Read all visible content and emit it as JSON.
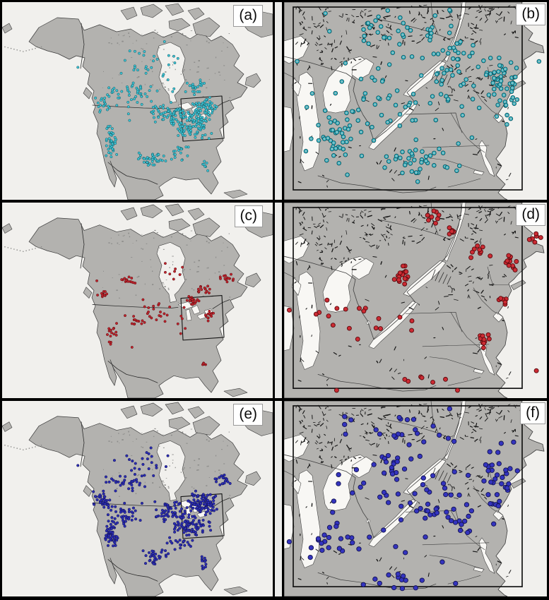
{
  "figure": {
    "type": "six-panel-station-map-figure",
    "columns": [
      "north-america-overview",
      "great-lakes-region-zoom"
    ],
    "border_color": "#000000",
    "ocean_color": "#f1f0ed",
    "land_color": "#b3b2af",
    "lake_color": "#f8f7f4",
    "coast_color": "#3b3b3b",
    "gap_color": "#ececea",
    "inset_box_color": "#141414"
  },
  "panels": [
    {
      "id": "a",
      "label": "(a)",
      "map": "north-america",
      "row": 0,
      "col": 0,
      "seed": 101,
      "marker": {
        "shape": "circle",
        "fill": "#3fc4d4",
        "edge": "#0b535e",
        "r": 1.7,
        "open": false
      },
      "clusters": [
        [
          70,
          62,
          9,
          8,
          110
        ],
        [
          75,
          53,
          5,
          5,
          50
        ],
        [
          62,
          56,
          8,
          6,
          55
        ],
        [
          55,
          80,
          7,
          5,
          40
        ],
        [
          40.5,
          70,
          2.5,
          9,
          40
        ],
        [
          37,
          51,
          3.5,
          5,
          18
        ],
        [
          46,
          45,
          10,
          6,
          30
        ],
        [
          52,
          31,
          14,
          8,
          25
        ],
        [
          72,
          43,
          6,
          4,
          22
        ],
        [
          56,
          52,
          18,
          13,
          30
        ],
        [
          66,
          76,
          6,
          5,
          18
        ],
        [
          75,
          82,
          1.5,
          4,
          7
        ]
      ],
      "singles": [
        [
          28,
          33
        ],
        [
          60,
          20
        ],
        [
          44,
          36
        ]
      ]
    },
    {
      "id": "b",
      "label": "(b)",
      "map": "great-lakes",
      "row": 0,
      "col": 1,
      "seed": 202,
      "marker": {
        "shape": "circle",
        "fill": "#3fc4d4",
        "edge": "#0b535e",
        "r": 2.8,
        "open": true
      },
      "clusters": [
        [
          45,
          52,
          38,
          36,
          85
        ],
        [
          83,
          42,
          7,
          22,
          55
        ],
        [
          42,
          14,
          30,
          11,
          35
        ],
        [
          20,
          68,
          13,
          16,
          35
        ],
        [
          50,
          82,
          20,
          10,
          35
        ],
        [
          65,
          30,
          12,
          12,
          25
        ]
      ],
      "singles": [
        [
          63,
          4
        ],
        [
          90,
          6
        ],
        [
          97,
          30
        ],
        [
          5,
          30
        ]
      ]
    },
    {
      "id": "c",
      "label": "(c)",
      "map": "north-america",
      "row": 1,
      "col": 0,
      "seed": 303,
      "marker": {
        "shape": "circle",
        "fill": "#c1242d",
        "edge": "#58090d",
        "r": 1.7,
        "open": false
      },
      "clusters": [
        [
          70.5,
          50,
          2.5,
          2.5,
          22
        ],
        [
          74,
          44,
          3.5,
          2.5,
          14
        ],
        [
          83,
          39,
          3,
          3.5,
          14
        ],
        [
          76.5,
          57,
          2,
          4,
          13
        ],
        [
          40.5,
          68,
          2.2,
          7,
          16
        ],
        [
          37,
          47,
          2,
          2.5,
          11
        ],
        [
          46.5,
          40,
          4,
          2.5,
          13
        ],
        [
          50,
          61,
          4,
          3,
          11
        ],
        [
          58,
          56,
          14,
          11,
          26
        ],
        [
          74.5,
          82,
          1.2,
          3.5,
          5
        ],
        [
          63,
          35,
          8,
          5,
          8
        ]
      ],
      "singles": [
        [
          35,
          40
        ],
        [
          48,
          74
        ],
        [
          66,
          67
        ]
      ]
    },
    {
      "id": "d",
      "label": "(d)",
      "map": "great-lakes",
      "row": 1,
      "col": 1,
      "seed": 404,
      "marker": {
        "shape": "circle",
        "fill": "#cc2b33",
        "edge": "#58090d",
        "r": 3.0,
        "open": false
      },
      "clusters": [
        [
          45,
          37,
          4,
          7,
          18
        ],
        [
          57,
          7,
          4,
          4,
          9
        ],
        [
          63,
          14,
          3,
          4,
          6
        ],
        [
          74,
          25,
          6,
          6,
          9
        ],
        [
          86,
          31,
          3,
          5,
          11
        ],
        [
          83,
          49,
          2.5,
          3.5,
          6
        ],
        [
          76,
          71,
          3,
          5,
          10
        ],
        [
          32,
          64,
          18,
          14,
          13
        ],
        [
          14,
          56,
          7,
          9,
          5
        ],
        [
          50,
          90,
          15,
          5,
          6
        ],
        [
          95,
          20,
          3,
          6,
          6
        ]
      ],
      "singles": [
        [
          2,
          55
        ],
        [
          20,
          96
        ],
        [
          66,
          96
        ],
        [
          96,
          86
        ]
      ]
    },
    {
      "id": "e",
      "label": "(e)",
      "map": "north-america",
      "row": 2,
      "col": 0,
      "seed": 505,
      "marker": {
        "shape": "circle",
        "fill": "#2b2db5",
        "edge": "#12124f",
        "r": 1.8,
        "open": false
      },
      "clusters": [
        [
          74,
          52,
          6,
          6,
          100
        ],
        [
          70,
          63,
          8,
          7,
          85
        ],
        [
          62,
          57,
          7,
          6,
          50
        ],
        [
          40.5,
          68,
          2.8,
          9,
          55
        ],
        [
          37,
          50,
          4,
          6,
          40
        ],
        [
          45,
          58,
          7,
          7,
          38
        ],
        [
          45,
          42,
          9,
          5,
          32
        ],
        [
          56,
          79,
          7,
          5,
          32
        ],
        [
          74.5,
          82,
          1.5,
          5,
          12
        ],
        [
          52,
          32,
          13,
          7,
          22
        ],
        [
          82,
          41,
          4,
          4,
          20
        ],
        [
          66,
          72,
          6,
          4,
          20
        ]
      ],
      "singles": [
        [
          28,
          33
        ],
        [
          55,
          24
        ]
      ]
    },
    {
      "id": "f",
      "label": "(f)",
      "map": "great-lakes",
      "row": 2,
      "col": 1,
      "seed": 606,
      "marker": {
        "shape": "circle",
        "fill": "#3434bf",
        "edge": "#12124f",
        "r": 3.2,
        "open": false
      },
      "clusters": [
        [
          45,
          52,
          36,
          34,
          55
        ],
        [
          82,
          42,
          8,
          22,
          32
        ],
        [
          45,
          14,
          28,
          10,
          22
        ],
        [
          42,
          34,
          5,
          6,
          12
        ],
        [
          20,
          70,
          12,
          14,
          18
        ],
        [
          45,
          92,
          24,
          5,
          14
        ],
        [
          65,
          60,
          12,
          10,
          14
        ]
      ],
      "singles": [
        [
          63,
          4
        ],
        [
          10,
          80
        ],
        [
          95,
          5
        ],
        [
          2,
          72
        ]
      ]
    }
  ]
}
